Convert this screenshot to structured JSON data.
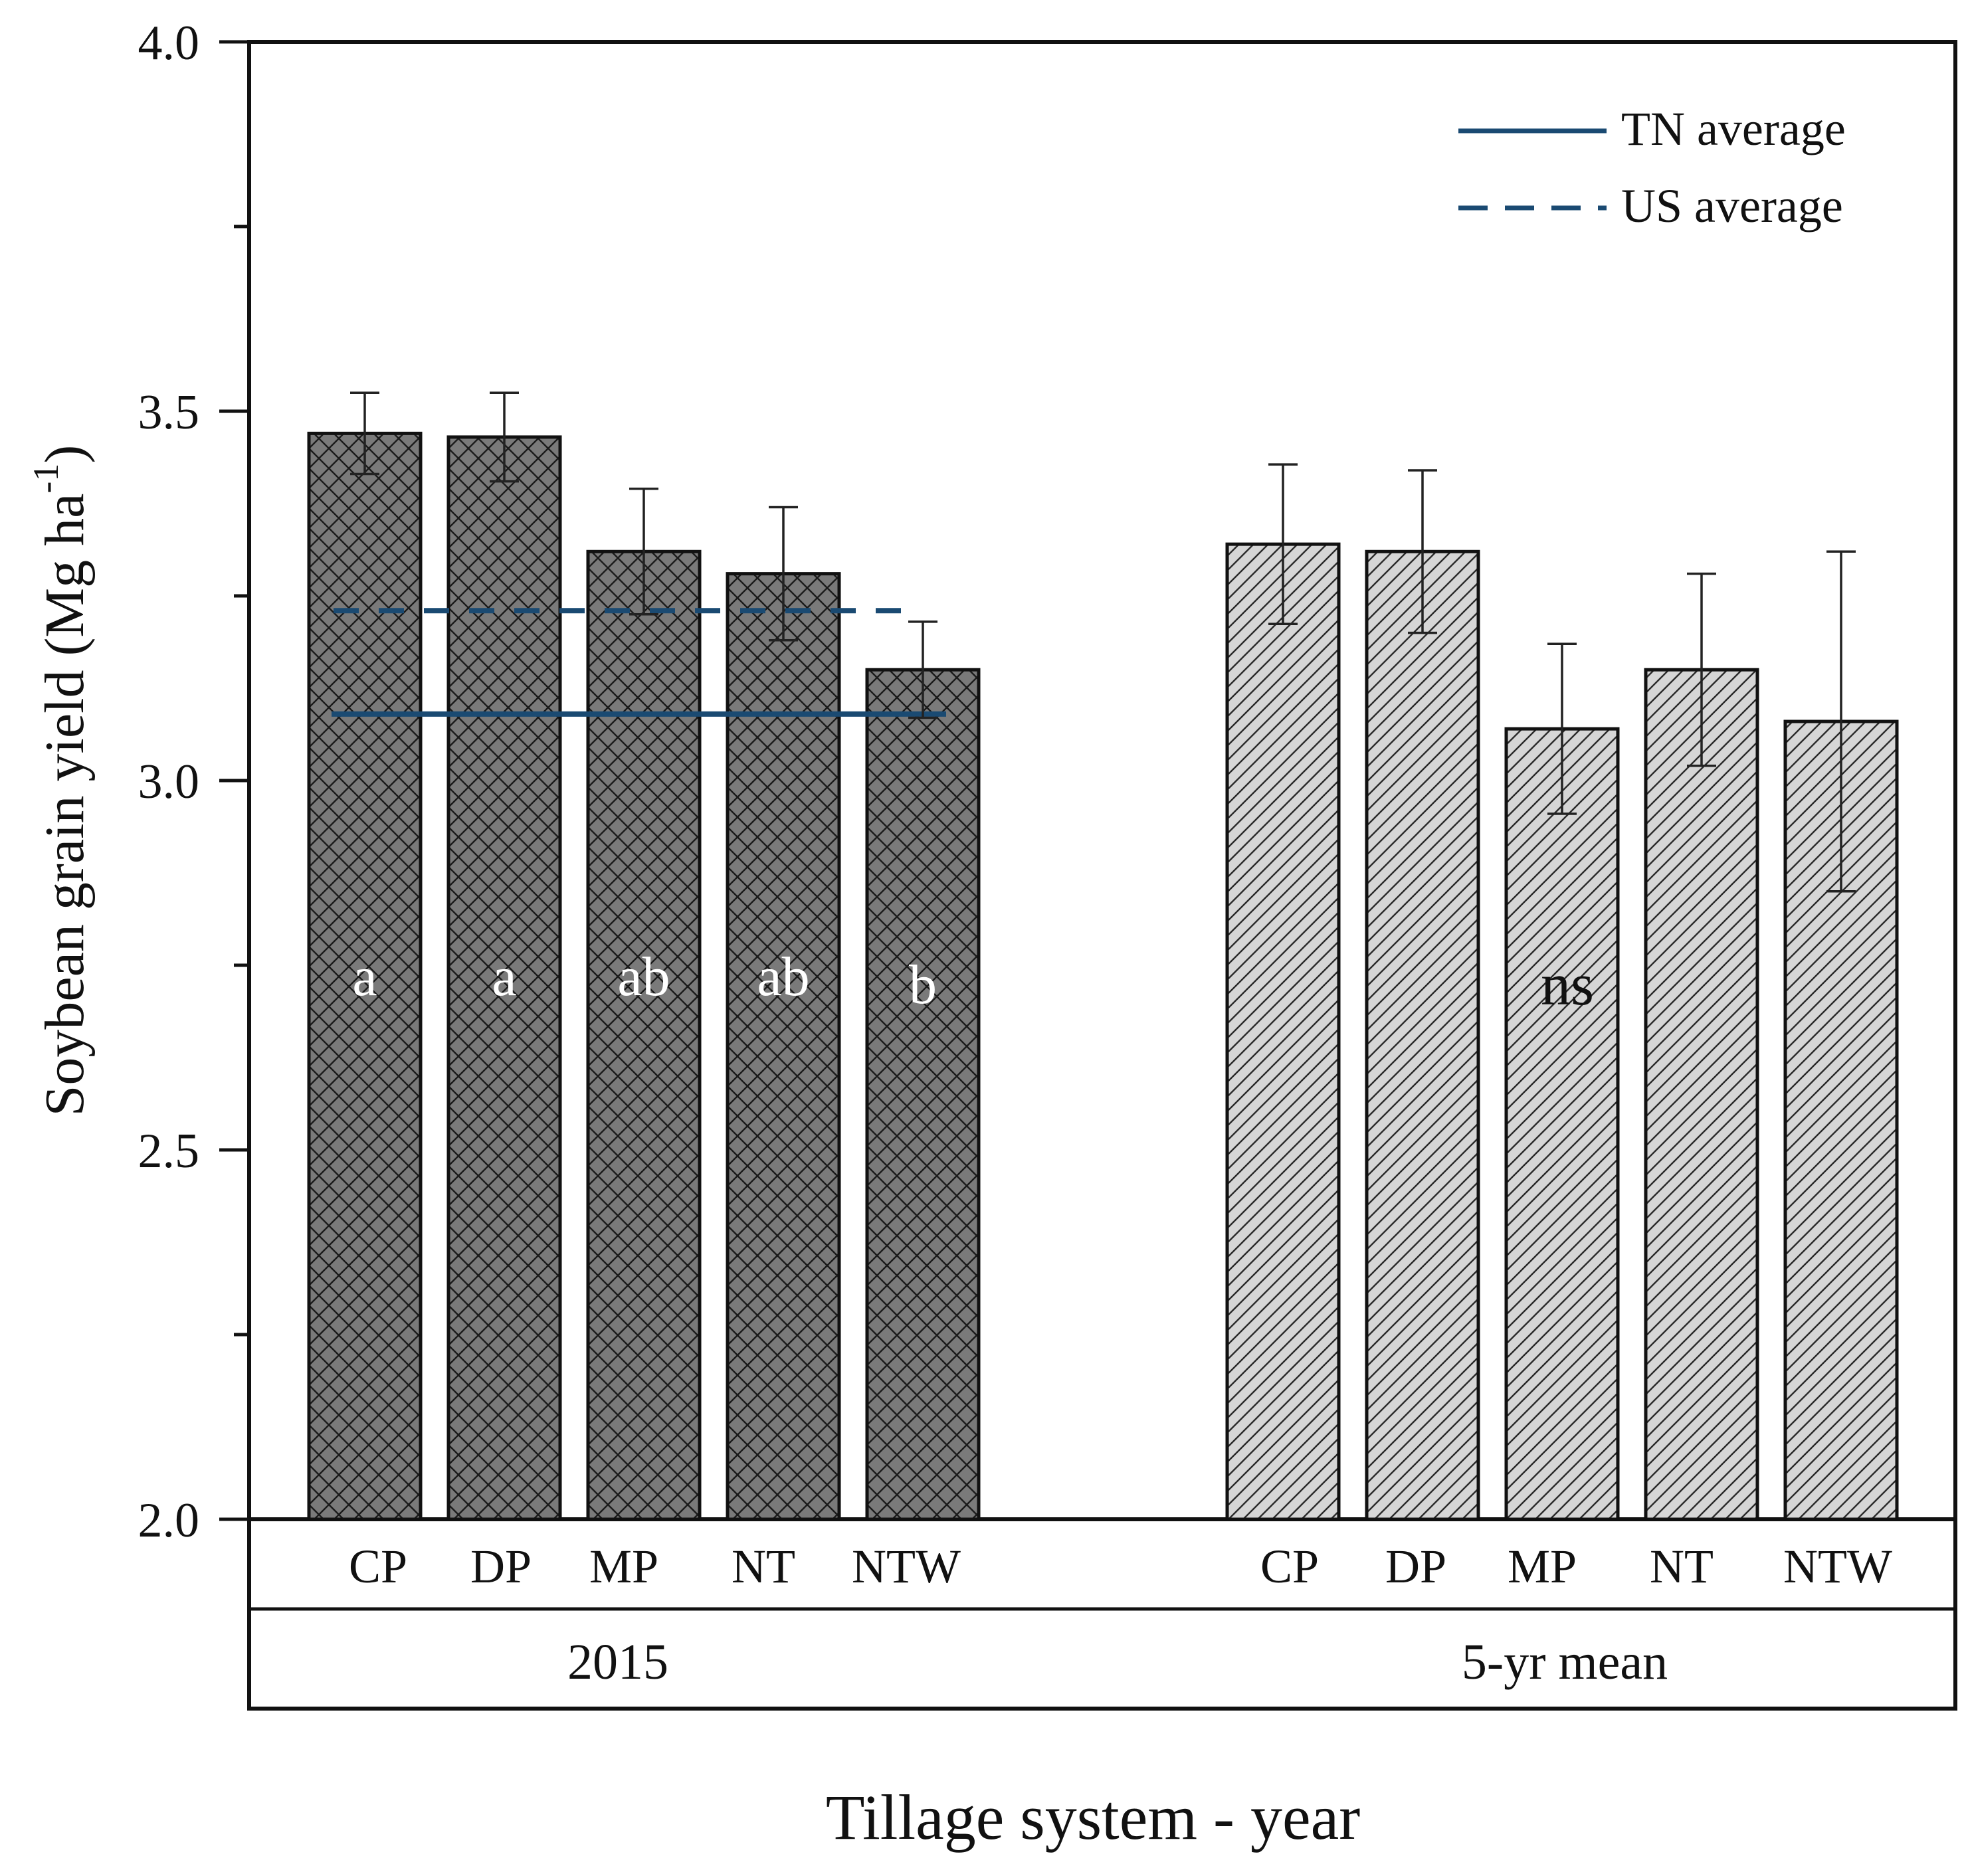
{
  "chart_data": {
    "type": "bar",
    "title": "",
    "xlabel": "Tillage system - year",
    "ylabel": "Soybean grain yield (Mg ha",
    "ylabel_sup": "-1",
    "ylabel_close": ")",
    "ylim": [
      2.0,
      4.0
    ],
    "yticks": [
      2.0,
      2.5,
      3.0,
      3.5,
      4.0
    ],
    "ytick_labels": [
      "2.0",
      "2.5",
      "3.0",
      "3.5",
      "4.0"
    ],
    "groups": [
      {
        "name": "2015",
        "pattern": "crosshatch",
        "fill_color": "#7a7a7a",
        "annotation_color": "#ffffff",
        "categories": [
          "CP",
          "DP",
          "MP",
          "NT",
          "NTW"
        ],
        "values": [
          3.47,
          3.465,
          3.31,
          3.28,
          3.15
        ],
        "errors": [
          0.055,
          0.06,
          0.085,
          0.09,
          0.065
        ],
        "letters": [
          "a",
          "a",
          "ab",
          "ab",
          "b"
        ]
      },
      {
        "name": "5-yr mean",
        "pattern": "diagonal",
        "fill_color": "#d6d6d6",
        "annotation_color": "#111111",
        "categories": [
          "CP",
          "DP",
          "MP",
          "NT",
          "NTW"
        ],
        "values": [
          3.32,
          3.31,
          3.07,
          3.15,
          3.08
        ],
        "errors": [
          0.108,
          0.11,
          0.115,
          0.13,
          0.23
        ],
        "letters": [
          "ns"
        ]
      }
    ],
    "reference_lines": [
      {
        "name": "TN average",
        "value": 3.09,
        "style": "solid",
        "color": "#1a4a72"
      },
      {
        "name": "US average",
        "value": 3.23,
        "style": "dashed",
        "color": "#1a4a72"
      }
    ],
    "legend": {
      "position": "top-right",
      "entries": [
        "TN average",
        "US average"
      ]
    }
  }
}
